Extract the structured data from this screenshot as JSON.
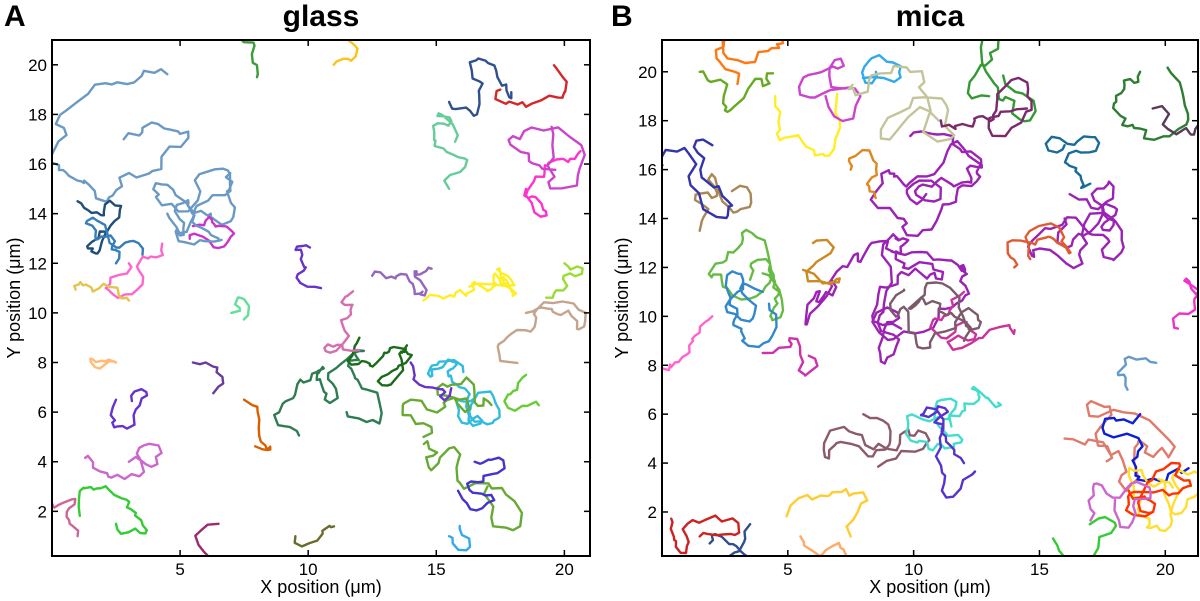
{
  "palette": [
    "#1f77b4",
    "#d62728",
    "#2ca02c",
    "#9467bd",
    "#8c564b",
    "#e377c2",
    "#17becf",
    "#bcbd22",
    "#ff7f0e",
    "#6a3d9a",
    "#1b9e77",
    "#d95f02",
    "#7570b3",
    "#66a61e",
    "#e6ab02",
    "#a6761d",
    "#377eb8",
    "#4daf4a",
    "#984ea3",
    "#e41a1c",
    "#ff33cc",
    "#00ccff",
    "#66cc99",
    "#cc6666",
    "#996699",
    "#336699",
    "#99cc33",
    "#ffcc00",
    "#5b8db8",
    "#b8a48d",
    "#2e7d32",
    "#6d4c41",
    "#9c27b0",
    "#00897b",
    "#c2185b",
    "#0d47a1"
  ],
  "chart_data": [
    {
      "type": "scatter",
      "panel_letter": "A",
      "title": "glass",
      "xlabel": "X position (μm)",
      "ylabel": "Y position (μm)",
      "xlim": [
        0,
        21
      ],
      "ylim": [
        0.2,
        21
      ],
      "xticks": [
        5,
        10,
        15,
        20
      ],
      "yticks": [
        2,
        4,
        6,
        8,
        10,
        12,
        14,
        16,
        18,
        20
      ],
      "seed": 11,
      "series": [
        {
          "cx": 2.8,
          "cy": 17.0,
          "n": 60,
          "step": 0.45,
          "color": "#6a9ac4"
        },
        {
          "cx": 4.5,
          "cy": 14.0,
          "n": 55,
          "step": 0.42,
          "color": "#6a9ac4"
        },
        {
          "cx": 1.0,
          "cy": 14.5,
          "n": 30,
          "step": 0.28,
          "color": "#1f4e79"
        },
        {
          "cx": 2.5,
          "cy": 12.0,
          "n": 30,
          "step": 0.3,
          "color": "#377eb8"
        },
        {
          "cx": 3.0,
          "cy": 12.0,
          "n": 25,
          "step": 0.3,
          "color": "#ff66cc"
        },
        {
          "cx": 5.5,
          "cy": 13.5,
          "n": 25,
          "step": 0.3,
          "color": "#cc33cc"
        },
        {
          "cx": 6.5,
          "cy": 13.0,
          "n": 30,
          "step": 0.3,
          "color": "#6a9ac4"
        },
        {
          "cx": 3.0,
          "cy": 10.5,
          "n": 18,
          "step": 0.28,
          "color": "#e6c34d"
        },
        {
          "cx": 2.5,
          "cy": 6.5,
          "n": 20,
          "step": 0.28,
          "color": "#6633cc"
        },
        {
          "cx": 2.5,
          "cy": 8.0,
          "n": 14,
          "step": 0.25,
          "color": "#ffbb77"
        },
        {
          "cx": 3.0,
          "cy": 4.0,
          "n": 28,
          "step": 0.32,
          "color": "#cc66cc"
        },
        {
          "cx": 2.5,
          "cy": 1.5,
          "n": 30,
          "step": 0.3,
          "color": "#33cc33"
        },
        {
          "cx": 1.0,
          "cy": 1.0,
          "n": 18,
          "step": 0.28,
          "color": "#cc6699"
        },
        {
          "cx": 7.5,
          "cy": 6.5,
          "n": 16,
          "step": 0.35,
          "color": "#d95f02"
        },
        {
          "cx": 5.5,
          "cy": 8.0,
          "n": 10,
          "step": 0.3,
          "color": "#6a3d9a"
        },
        {
          "cx": 10.5,
          "cy": 11.0,
          "n": 18,
          "step": 0.28,
          "color": "#6633cc"
        },
        {
          "cx": 12.5,
          "cy": 11.5,
          "n": 28,
          "step": 0.32,
          "color": "#9467bd"
        },
        {
          "cx": 11.5,
          "cy": 6.0,
          "n": 65,
          "step": 0.36,
          "color": "#2e7d52"
        },
        {
          "cx": 12.0,
          "cy": 9.0,
          "n": 45,
          "step": 0.33,
          "color": "#1b6b1b"
        },
        {
          "cx": 12.0,
          "cy": 8.5,
          "n": 28,
          "step": 0.32,
          "color": "#d36fae"
        },
        {
          "cx": 14.5,
          "cy": 10.5,
          "n": 50,
          "step": 0.38,
          "color": "#ffee22"
        },
        {
          "cx": 16.5,
          "cy": 6.5,
          "n": 70,
          "step": 0.28,
          "color": "#33bbdd"
        },
        {
          "cx": 14.5,
          "cy": 5.0,
          "n": 40,
          "step": 0.4,
          "color": "#66aa33"
        },
        {
          "cx": 17.0,
          "cy": 3.0,
          "n": 35,
          "step": 0.45,
          "color": "#66aa33"
        },
        {
          "cx": 16.5,
          "cy": 4.0,
          "n": 28,
          "step": 0.3,
          "color": "#4433cc"
        },
        {
          "cx": 18.5,
          "cy": 10.0,
          "n": 40,
          "step": 0.33,
          "color": "#c4a48d"
        },
        {
          "cx": 18.5,
          "cy": 15.0,
          "n": 30,
          "step": 0.35,
          "color": "#ff33cc"
        },
        {
          "cx": 15.5,
          "cy": 15.0,
          "n": 28,
          "step": 0.35,
          "color": "#66cc99"
        },
        {
          "cx": 15.5,
          "cy": 18.5,
          "n": 28,
          "step": 0.35,
          "color": "#2f4f8f"
        },
        {
          "cx": 19.5,
          "cy": 17.5,
          "n": 30,
          "step": 0.5,
          "color": "#cc44cc"
        },
        {
          "cx": 17.5,
          "cy": 19.0,
          "n": 20,
          "step": 0.4,
          "color": "#d62728"
        },
        {
          "cx": 8.0,
          "cy": 19.5,
          "n": 10,
          "step": 0.35,
          "color": "#3a9d3a"
        },
        {
          "cx": 11.0,
          "cy": 20.0,
          "n": 12,
          "step": 0.3,
          "color": "#ffc21a"
        },
        {
          "cx": 9.5,
          "cy": 1.0,
          "n": 10,
          "step": 0.35,
          "color": "#6b6b2e"
        },
        {
          "cx": 6.5,
          "cy": 1.5,
          "n": 10,
          "step": 0.4,
          "color": "#9c2a6e"
        },
        {
          "cx": 20.0,
          "cy": 12.0,
          "n": 16,
          "step": 0.35,
          "color": "#99dd33"
        },
        {
          "cx": 14.0,
          "cy": 8.0,
          "n": 16,
          "step": 0.3,
          "color": "#6633cc"
        },
        {
          "cx": 18.5,
          "cy": 7.5,
          "n": 14,
          "step": 0.3,
          "color": "#66cc33"
        },
        {
          "cx": 15.5,
          "cy": 1.0,
          "n": 10,
          "step": 0.3,
          "color": "#33aaee"
        },
        {
          "cx": 7.0,
          "cy": 10.0,
          "n": 10,
          "step": 0.3,
          "color": "#66dd99"
        }
      ]
    },
    {
      "type": "scatter",
      "panel_letter": "B",
      "title": "mica",
      "xlabel": "X position (μm)",
      "ylabel": "Y position (μm)",
      "xlim": [
        0,
        21.3
      ],
      "ylim": [
        0.2,
        21.3
      ],
      "xticks": [
        5,
        10,
        15,
        20
      ],
      "yticks": [
        2,
        4,
        6,
        8,
        10,
        12,
        14,
        16,
        18,
        20
      ],
      "seed": 29,
      "series": [
        {
          "cx": 9.5,
          "cy": 9.5,
          "n": 140,
          "step": 0.42,
          "color": "#9b22b5"
        },
        {
          "cx": 10.5,
          "cy": 15.0,
          "n": 90,
          "step": 0.42,
          "color": "#9b22b5"
        },
        {
          "cx": 16.0,
          "cy": 14.0,
          "n": 80,
          "step": 0.42,
          "color": "#9b22b5"
        },
        {
          "cx": 12.0,
          "cy": 11.0,
          "n": 40,
          "step": 0.4,
          "color": "#cc3399"
        },
        {
          "cx": 12.0,
          "cy": 9.0,
          "n": 60,
          "step": 0.4,
          "color": "#7b5a6b"
        },
        {
          "cx": 8.0,
          "cy": 6.0,
          "n": 50,
          "step": 0.4,
          "color": "#8d5a6b"
        },
        {
          "cx": 11.5,
          "cy": 5.5,
          "n": 60,
          "step": 0.35,
          "color": "#44ddcc"
        },
        {
          "cx": 12.0,
          "cy": 4.0,
          "n": 45,
          "step": 0.35,
          "color": "#5533cc"
        },
        {
          "cx": 16.0,
          "cy": 5.0,
          "n": 45,
          "step": 0.55,
          "color": "#e07a6a"
        },
        {
          "cx": 19.0,
          "cy": 6.0,
          "n": 28,
          "step": 0.4,
          "color": "#0a1fd6"
        },
        {
          "cx": 20.3,
          "cy": 3.0,
          "n": 50,
          "step": 0.35,
          "color": "#ffdd33"
        },
        {
          "cx": 19.5,
          "cy": 2.0,
          "n": 45,
          "step": 0.35,
          "color": "#ff3300"
        },
        {
          "cx": 18.0,
          "cy": 2.5,
          "n": 28,
          "step": 0.4,
          "color": "#cc66cc"
        },
        {
          "cx": 17.0,
          "cy": 1.5,
          "n": 22,
          "step": 0.4,
          "color": "#33cc33"
        },
        {
          "cx": 3.5,
          "cy": 1.5,
          "n": 40,
          "step": 0.4,
          "color": "#2f4f8f"
        },
        {
          "cx": 1.5,
          "cy": 1.0,
          "n": 30,
          "step": 0.35,
          "color": "#cc2222"
        },
        {
          "cx": 5.5,
          "cy": 1.0,
          "n": 25,
          "step": 0.4,
          "color": "#ffaa66"
        },
        {
          "cx": 7.5,
          "cy": 1.0,
          "n": 20,
          "step": 0.4,
          "color": "#ffcc33"
        },
        {
          "cx": 3.5,
          "cy": 11.5,
          "n": 60,
          "step": 0.35,
          "color": "#66bb44"
        },
        {
          "cx": 4.0,
          "cy": 11.0,
          "n": 45,
          "step": 0.35,
          "color": "#3388cc"
        },
        {
          "cx": 2.0,
          "cy": 10.0,
          "n": 35,
          "step": 0.35,
          "color": "#ff66cc"
        },
        {
          "cx": 1.5,
          "cy": 13.5,
          "n": 30,
          "step": 0.4,
          "color": "#aa8855"
        },
        {
          "cx": 2.0,
          "cy": 17.0,
          "n": 30,
          "step": 0.45,
          "color": "#3333aa"
        },
        {
          "cx": 1.5,
          "cy": 20.0,
          "n": 28,
          "step": 0.35,
          "color": "#66aa22"
        },
        {
          "cx": 3.0,
          "cy": 19.5,
          "n": 25,
          "step": 0.4,
          "color": "#ff7711"
        },
        {
          "cx": 4.5,
          "cy": 19.0,
          "n": 25,
          "step": 0.45,
          "color": "#ffee22"
        },
        {
          "cx": 6.5,
          "cy": 19.0,
          "n": 30,
          "step": 0.45,
          "color": "#cc44cc"
        },
        {
          "cx": 8.5,
          "cy": 20.0,
          "n": 18,
          "step": 0.35,
          "color": "#33aaee"
        },
        {
          "cx": 11.0,
          "cy": 18.0,
          "n": 40,
          "step": 0.55,
          "color": "#c4c49a"
        },
        {
          "cx": 13.0,
          "cy": 19.0,
          "n": 35,
          "step": 0.45,
          "color": "#339933"
        },
        {
          "cx": 14.5,
          "cy": 18.5,
          "n": 40,
          "step": 0.4,
          "color": "#7a2a6b"
        },
        {
          "cx": 16.0,
          "cy": 17.0,
          "n": 30,
          "step": 0.35,
          "color": "#1a6b99"
        },
        {
          "cx": 19.0,
          "cy": 20.0,
          "n": 35,
          "step": 0.4,
          "color": "#2e7d32"
        },
        {
          "cx": 19.5,
          "cy": 18.5,
          "n": 30,
          "step": 0.4,
          "color": "#5a3a5a"
        },
        {
          "cx": 14.0,
          "cy": 12.0,
          "n": 30,
          "step": 0.4,
          "color": "#e05a33"
        },
        {
          "cx": 7.5,
          "cy": 16.0,
          "n": 18,
          "step": 0.35,
          "color": "#dd8822"
        },
        {
          "cx": 20.5,
          "cy": 9.5,
          "n": 18,
          "step": 0.35,
          "color": "#ee33cc"
        },
        {
          "cx": 18.5,
          "cy": 7.0,
          "n": 14,
          "step": 0.35,
          "color": "#6699cc"
        },
        {
          "cx": 4.0,
          "cy": 8.5,
          "n": 20,
          "step": 0.35,
          "color": "#cc33aa"
        },
        {
          "cx": 6.0,
          "cy": 13.0,
          "n": 20,
          "step": 0.4,
          "color": "#cc8822"
        }
      ]
    }
  ]
}
